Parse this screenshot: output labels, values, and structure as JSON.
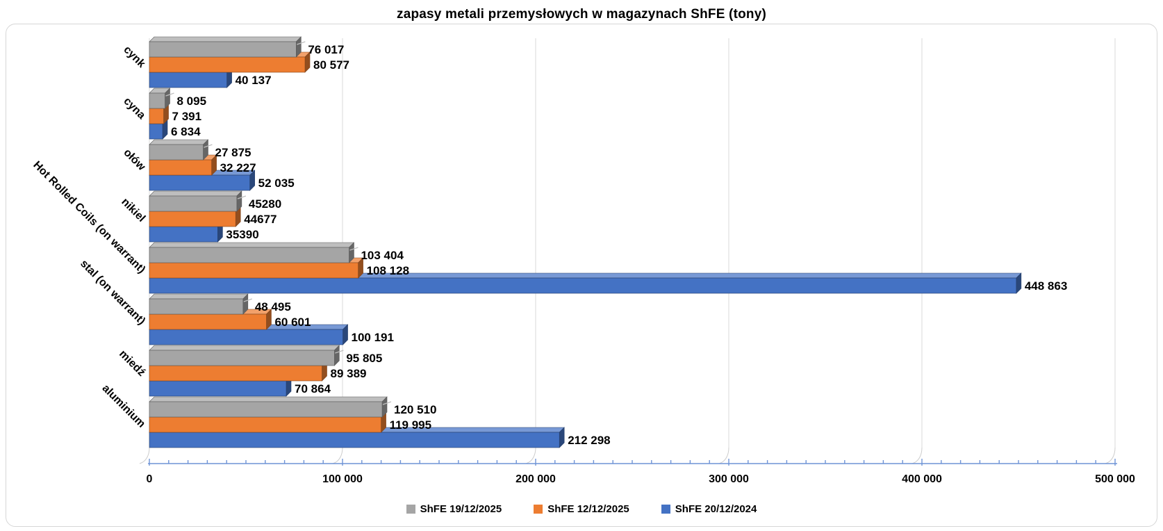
{
  "title": "zapasy metali przemysłowych w magazynach ShFE (tony)",
  "chart_data": {
    "type": "bar",
    "orientation": "horizontal",
    "style": "3d-clustered",
    "title": "zapasy metali przemysłowych w magazynach ShFE (tony)",
    "categories": [
      "cynk",
      "cyna",
      "ołów",
      "nikiel",
      "Hot Rolled Coils (on warrant)",
      "stal (on warrant)",
      "miedź",
      "aluminium"
    ],
    "series": [
      {
        "name": "ShFE 19/12/2025",
        "color": "#A5A5A5",
        "values": [
          76017,
          8095,
          27875,
          45280,
          103404,
          48495,
          95805,
          120510
        ],
        "labels": [
          "76 017",
          "8 095",
          "27 875",
          "45280",
          "103 404",
          "48 495",
          "95 805",
          "120 510"
        ]
      },
      {
        "name": "ShFE 12/12/2025",
        "color": "#ED7D31",
        "values": [
          80577,
          7391,
          32227,
          44677,
          108128,
          60601,
          89389,
          119995
        ],
        "labels": [
          "80 577",
          "7 391",
          "32 227",
          "44677",
          "108 128",
          "60 601",
          "89 389",
          "119 995"
        ]
      },
      {
        "name": "ShFE 20/12/2024",
        "color": "#4472C4",
        "values": [
          40137,
          6834,
          52035,
          35390,
          448863,
          100191,
          70864,
          212298
        ],
        "labels": [
          "40 137",
          "6 834",
          "52 035",
          "35390",
          "448 863",
          "100 191",
          "70 864",
          "212 298"
        ]
      }
    ],
    "xlim": [
      0,
      500000
    ],
    "x_tick_labels": [
      "0",
      "100 000",
      "200 000",
      "300 000",
      "400 000",
      "500 000"
    ],
    "x_tick_step": 100000,
    "x_minor_step": 10000,
    "grid": true,
    "legend_position": "bottom",
    "axis_color": "#6E93D6",
    "gridline_color": "#D9D9D9",
    "text_color": "#000000"
  }
}
